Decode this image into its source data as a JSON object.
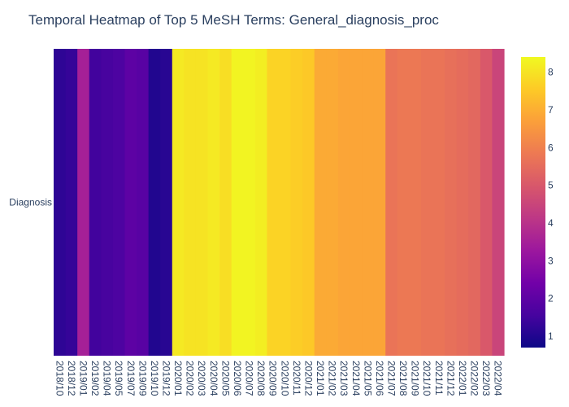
{
  "chart_data": {
    "type": "heatmap",
    "title": "Temporal Heatmap of Top 5 MeSH Terms: General_diagnosis_proc",
    "y_categories": [
      "Diagnosis"
    ],
    "x_categories": [
      "2018/10",
      "2018/12",
      "2019/01",
      "2019/02",
      "2019/04",
      "2019/05",
      "2019/07",
      "2019/09",
      "2019/10",
      "2019/12",
      "2020/01",
      "2020/02",
      "2020/03",
      "2020/04",
      "2020/05",
      "2020/06",
      "2020/07",
      "2020/08",
      "2020/09",
      "2020/10",
      "2020/11",
      "2020/12",
      "2021/01",
      "2021/02",
      "2021/03",
      "2021/04",
      "2021/05",
      "2021/06",
      "2021/07",
      "2021/08",
      "2021/09",
      "2021/10",
      "2021/11",
      "2021/12",
      "2022/01",
      "2022/02",
      "2022/03",
      "2022/04"
    ],
    "values": [
      [
        1.2,
        1.3,
        3.5,
        1.5,
        1.6,
        1.7,
        2.0,
        1.9,
        1.0,
        1.1,
        8.1,
        8.0,
        8.0,
        8.1,
        7.9,
        8.3,
        8.3,
        8.2,
        7.7,
        7.7,
        7.6,
        7.5,
        6.9,
        6.9,
        6.8,
        6.8,
        6.8,
        6.8,
        5.7,
        5.8,
        5.8,
        5.7,
        5.7,
        5.6,
        5.5,
        5.4,
        5.0,
        4.5
      ]
    ],
    "colorscale": "Plasma",
    "zrange": [
      0.7,
      8.4
    ],
    "colorbar_ticks": [
      "1",
      "2",
      "3",
      "4",
      "5",
      "6",
      "7",
      "8"
    ]
  }
}
